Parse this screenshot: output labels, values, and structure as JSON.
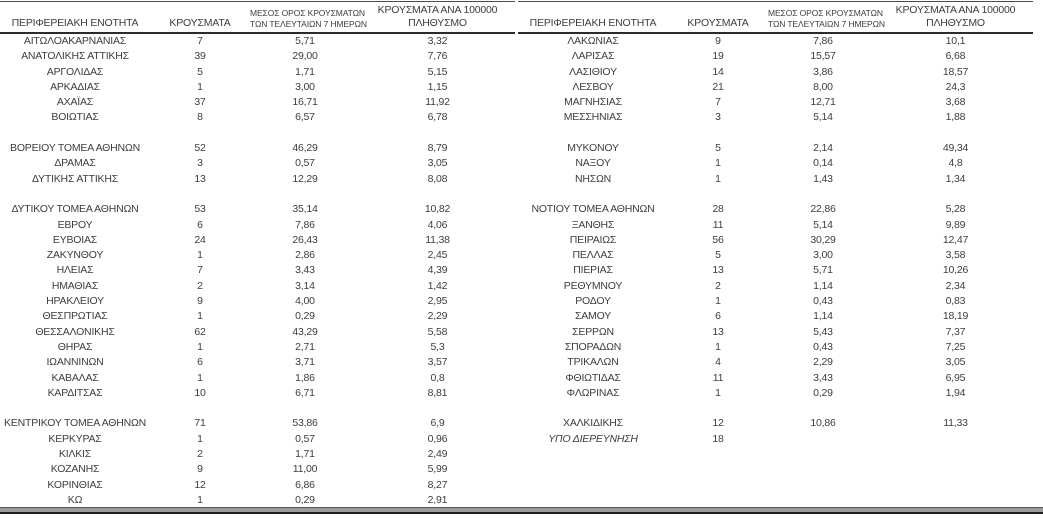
{
  "columns": {
    "region": "ΠΕΡΙΦΕΡΕΙΑΚΗ ΕΝΟΤΗΤΑ",
    "cases": "ΚΡΟΥΣΜΑΤΑ",
    "avg7_line1": "ΜΕΣΟΣ ΟΡΟΣ ΚΡΟΥΣΜΑΤΩΝ",
    "avg7_line2": "ΤΩΝ ΤΕΛΕΥΤΑΙΩΝ 7 ΗΜΕΡΩΝ",
    "per100k_line1": "ΚΡΟΥΣΜΑΤΑ ΑΝΑ 100000",
    "per100k_line2": "ΠΛΗΘΥΣΜΟ"
  },
  "colors": {
    "text": "#3d3d3d",
    "rule_top": "#4a4a4a",
    "rule_header": "#2b2b2b",
    "bottom_band_fill": "#9b9b9b",
    "bottom_band_edge": "#1e1e1e"
  },
  "left_table": {
    "rows": [
      [
        "ΑΙΤΩΛΟΑΚΑΡΝΑΝΙΑΣ",
        "7",
        "5,71",
        "3,32"
      ],
      [
        "ΑΝΑΤΟΛΙΚΗΣ ΑΤΤΙΚΗΣ",
        "39",
        "29,00",
        "7,76"
      ],
      [
        "ΑΡΓΟΛΙΔΑΣ",
        "5",
        "1,71",
        "5,15"
      ],
      [
        "ΑΡΚΑΔΙΑΣ",
        "1",
        "3,00",
        "1,15"
      ],
      [
        "ΑΧΑΪΑΣ",
        "37",
        "16,71",
        "11,92"
      ],
      [
        "ΒΟΙΩΤΙΑΣ",
        "8",
        "6,57",
        "6,78"
      ],
      [],
      [
        "ΒΟΡΕΙΟΥ ΤΟΜΕΑ ΑΘΗΝΩΝ",
        "52",
        "46,29",
        "8,79"
      ],
      [
        "ΔΡΑΜΑΣ",
        "3",
        "0,57",
        "3,05"
      ],
      [
        "ΔΥΤΙΚΗΣ ΑΤΤΙΚΗΣ",
        "13",
        "12,29",
        "8,08"
      ],
      [],
      [
        "ΔΥΤΙΚΟΥ ΤΟΜΕΑ ΑΘΗΝΩΝ",
        "53",
        "35,14",
        "10,82"
      ],
      [
        "ΕΒΡΟΥ",
        "6",
        "7,86",
        "4,06"
      ],
      [
        "ΕΥΒΟΙΑΣ",
        "24",
        "26,43",
        "11,38"
      ],
      [
        "ΖΑΚΥΝΘΟΥ",
        "1",
        "2,86",
        "2,45"
      ],
      [
        "ΗΛΕΙΑΣ",
        "7",
        "3,43",
        "4,39"
      ],
      [
        "ΗΜΑΘΙΑΣ",
        "2",
        "3,14",
        "1,42"
      ],
      [
        "ΗΡΑΚΛΕΙΟΥ",
        "9",
        "4,00",
        "2,95"
      ],
      [
        "ΘΕΣΠΡΩΤΙΑΣ",
        "1",
        "0,29",
        "2,29"
      ],
      [
        "ΘΕΣΣΑΛΟΝΙΚΗΣ",
        "62",
        "43,29",
        "5,58"
      ],
      [
        "ΘΗΡΑΣ",
        "1",
        "2,71",
        "5,3"
      ],
      [
        "ΙΩΑΝΝΙΝΩΝ",
        "6",
        "3,71",
        "3,57"
      ],
      [
        "ΚΑΒΑΛΑΣ",
        "1",
        "1,86",
        "0,8"
      ],
      [
        "ΚΑΡΔΙΤΣΑΣ",
        "10",
        "6,71",
        "8,81"
      ],
      [],
      [
        "ΚΕΝΤΡΙΚΟΥ ΤΟΜΕΑ ΑΘΗΝΩΝ",
        "71",
        "53,86",
        "6,9"
      ],
      [
        "ΚΕΡΚΥΡΑΣ",
        "1",
        "0,57",
        "0,96"
      ],
      [
        "ΚΙΛΚΙΣ",
        "2",
        "1,71",
        "2,49"
      ],
      [
        "ΚΟΖΑΝΗΣ",
        "9",
        "11,00",
        "5,99"
      ],
      [
        "ΚΟΡΙΝΘΙΑΣ",
        "12",
        "6,86",
        "8,27"
      ],
      [
        "ΚΩ",
        "1",
        "0,29",
        "2,91"
      ]
    ]
  },
  "right_table": {
    "rows": [
      [
        "ΛΑΚΩΝΙΑΣ",
        "9",
        "7,86",
        "10,1"
      ],
      [
        "ΛΑΡΙΣΑΣ",
        "19",
        "15,57",
        "6,68"
      ],
      [
        "ΛΑΣΙΘΙΟΥ",
        "14",
        "3,86",
        "18,57"
      ],
      [
        "ΛΕΣΒΟΥ",
        "21",
        "8,00",
        "24,3"
      ],
      [
        "ΜΑΓΝΗΣΙΑΣ",
        "7",
        "12,71",
        "3,68"
      ],
      [
        "ΜΕΣΣΗΝΙΑΣ",
        "3",
        "5,14",
        "1,88"
      ],
      [],
      [
        "ΜΥΚΟΝΟΥ",
        "5",
        "2,14",
        "49,34"
      ],
      [
        "ΝΑΞΟΥ",
        "1",
        "0,14",
        "4,8"
      ],
      [
        "ΝΗΣΩΝ",
        "1",
        "1,43",
        "1,34"
      ],
      [],
      [
        "ΝΟΤΙΟΥ ΤΟΜΕΑ ΑΘΗΝΩΝ",
        "28",
        "22,86",
        "5,28"
      ],
      [
        "ΞΑΝΘΗΣ",
        "11",
        "5,14",
        "9,89"
      ],
      [
        "ΠΕΙΡΑΙΩΣ",
        "56",
        "30,29",
        "12,47"
      ],
      [
        "ΠΕΛΛΑΣ",
        "5",
        "3,00",
        "3,58"
      ],
      [
        "ΠΙΕΡΙΑΣ",
        "13",
        "5,71",
        "10,26"
      ],
      [
        "ΡΕΘΥΜΝΟΥ",
        "2",
        "1,14",
        "2,34"
      ],
      [
        "ΡΟΔΟΥ",
        "1",
        "0,43",
        "0,83"
      ],
      [
        "ΣΑΜΟΥ",
        "6",
        "1,14",
        "18,19"
      ],
      [
        "ΣΕΡΡΩΝ",
        "13",
        "5,43",
        "7,37"
      ],
      [
        "ΣΠΟΡΑΔΩΝ",
        "1",
        "0,43",
        "7,25"
      ],
      [
        "ΤΡΙΚΑΛΩΝ",
        "4",
        "2,29",
        "3,05"
      ],
      [
        "ΦΘΙΩΤΙΔΑΣ",
        "11",
        "3,43",
        "6,95"
      ],
      [
        "ΦΛΩΡΙΝΑΣ",
        "1",
        "0,29",
        "1,94"
      ],
      [],
      [
        "ΧΑΛΚΙΔΙΚΗΣ",
        "12",
        "10,86",
        "11,33"
      ],
      {
        "cells": [
          "ΥΠΟ ΔΙΕΡΕΥΝΗΣΗ",
          "18",
          "",
          ""
        ],
        "style": "italic"
      },
      [],
      [],
      [],
      []
    ]
  }
}
